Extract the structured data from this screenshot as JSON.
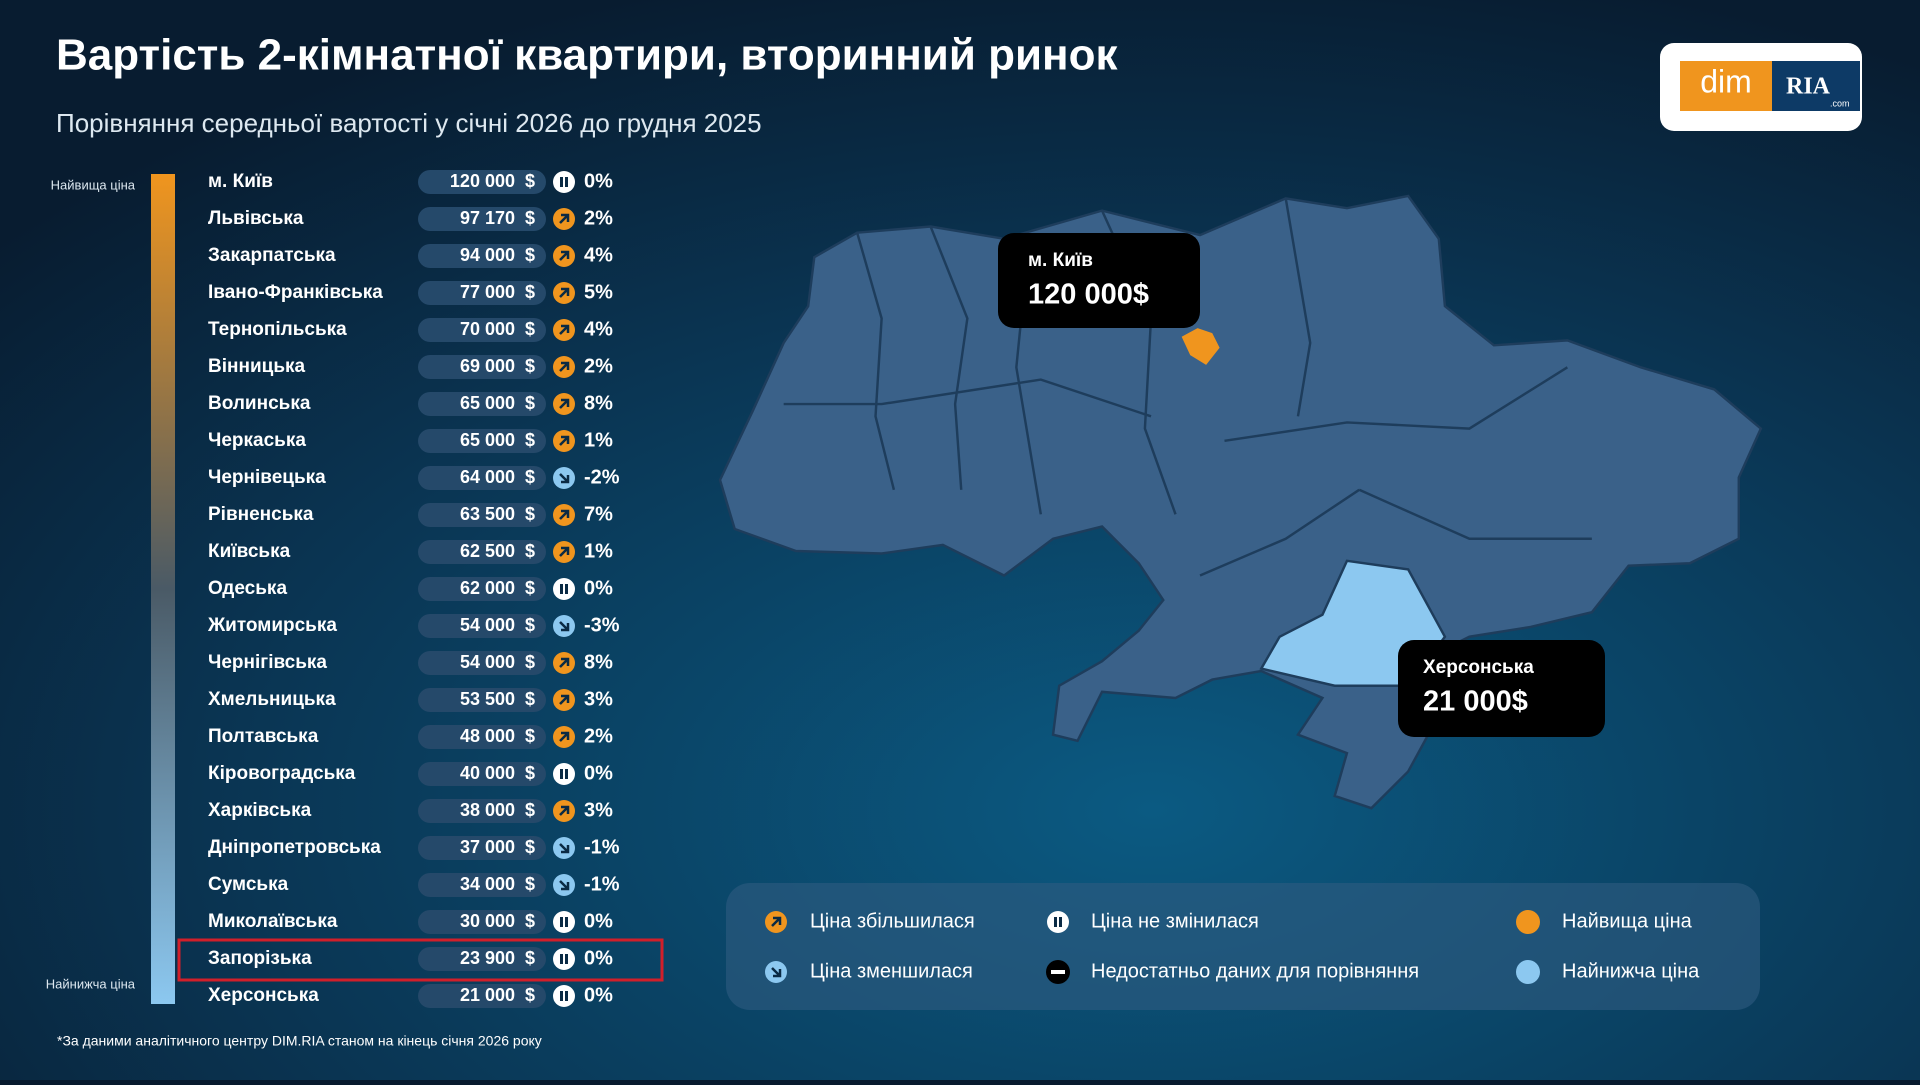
{
  "header": {
    "title": "Вартість 2-кімнатної квартири, вторинний ринок",
    "subtitle": "Порівняння середньої вартості у січні 2026 до грудня 2025"
  },
  "logo": {
    "left": "dim",
    "right": "RIA",
    "domain": ".com"
  },
  "scale": {
    "top": "Найвища ціна",
    "bottom": "Найнижча ціна"
  },
  "table": {
    "rows": [
      [
        "м. Київ",
        "120 000",
        "$",
        "0%"
      ],
      [
        "Львівська",
        "97 170",
        "$",
        "2%"
      ],
      [
        "Закарпатська",
        "94 000",
        "$",
        "4%"
      ],
      [
        "Івано-Франківська",
        "77 000",
        "$",
        "5%"
      ],
      [
        "Тернопільська",
        "70 000",
        "$",
        "4%"
      ],
      [
        "Вінницька",
        "69 000",
        "$",
        "2%"
      ],
      [
        "Волинська",
        "65 000",
        "$",
        "8%"
      ],
      [
        "Черкаська",
        "65 000",
        "$",
        "1%"
      ],
      [
        "Чернівецька",
        "64 000",
        "$",
        "-2%"
      ],
      [
        "Рівненська",
        "63 500",
        "$",
        "7%"
      ],
      [
        "Київська",
        "62 500",
        "$",
        "1%"
      ],
      [
        "Одеська",
        "62 000",
        "$",
        "0%"
      ],
      [
        "Житомирська",
        "54 000",
        "$",
        "-3%"
      ],
      [
        "Чернігівська",
        "54 000",
        "$",
        "8%"
      ],
      [
        "Хмельницька",
        "53 500",
        "$",
        "3%"
      ],
      [
        "Полтавська",
        "48 000",
        "$",
        "2%"
      ],
      [
        "Кіровоградська",
        "40 000",
        "$",
        "0%"
      ],
      [
        "Харківська",
        "38 000",
        "$",
        "3%"
      ],
      [
        "Дніпропетровська",
        "37 000",
        "$",
        "-1%"
      ],
      [
        "Сумська",
        "34 000",
        "$",
        "-1%"
      ],
      [
        "Миколаївська",
        "30 000",
        "$",
        "0%"
      ],
      [
        "Запорізька",
        "23 900",
        "$",
        "0%"
      ],
      [
        "Херсонська",
        "21 000",
        "$",
        "0%"
      ]
    ]
  },
  "map": {
    "callouts": [
      {
        "name": "м. Київ",
        "value": "120 000$"
      },
      {
        "name": "Херсонська",
        "value": "21 000$"
      }
    ]
  },
  "legend": {
    "items": [
      "Ціна збільшилася",
      "Ціна не змінилася",
      "Найвища ціна",
      "Ціна зменшилася",
      "Недостатньо даних для порівняння",
      "Найнижча ціна"
    ]
  },
  "footnote": "*За даними аналітичного центру DIM.RIA станом на кінець січня 2026 року"
}
